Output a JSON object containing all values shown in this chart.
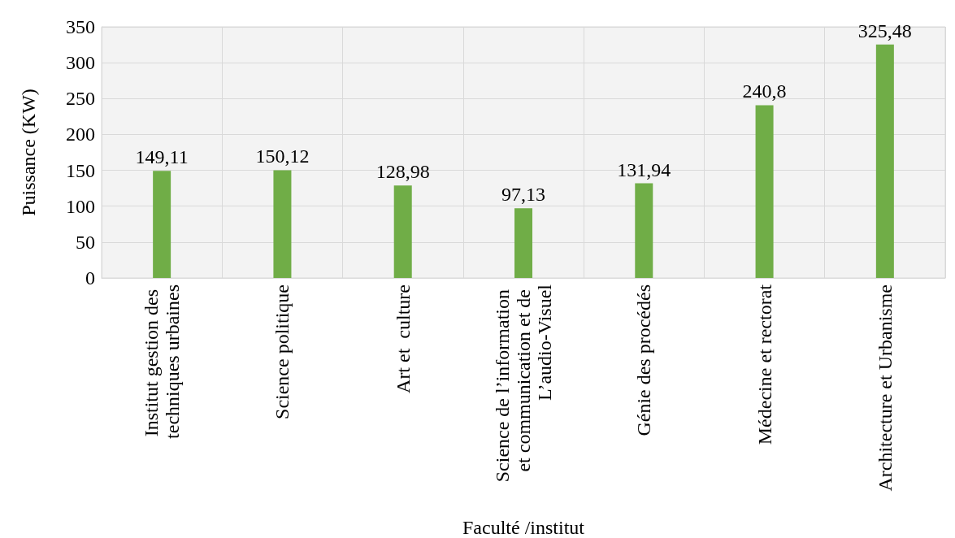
{
  "chart_data": {
    "type": "bar",
    "xlabel": "Faculté /institut",
    "ylabel": "Puissance (KW)",
    "categories": [
      "Institut gestion des techniques urbaines",
      "Science politique",
      "Art et  culture",
      "Science de l’information et communication et de L’audio-Visuel",
      "Génie des procédés",
      "Médecine et rectorat",
      "Architecture et Urbanisme"
    ],
    "values": [
      149.11,
      150.12,
      128.98,
      97.13,
      131.94,
      240.8,
      325.48
    ],
    "value_labels": [
      "149,11",
      "150,12",
      "128,98",
      "97,13",
      "131,94",
      "240,8",
      "325,48"
    ],
    "color": "#70ad47",
    "ylim": [
      0,
      350
    ],
    "yticks": [
      0,
      50,
      100,
      150,
      200,
      250,
      300,
      350
    ],
    "grid": true
  }
}
